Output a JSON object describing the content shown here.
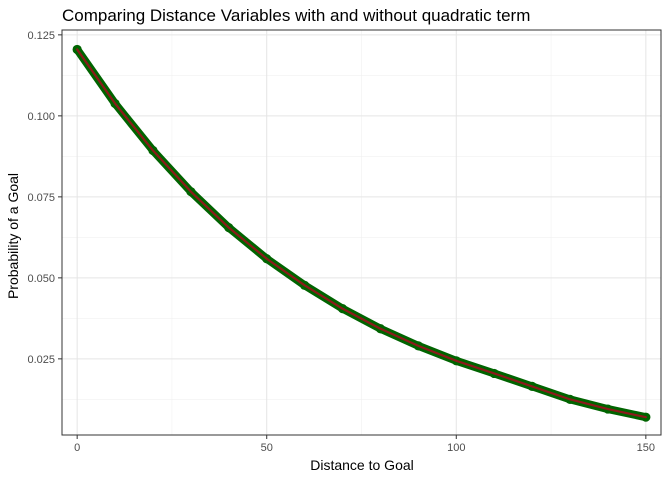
{
  "chart_data": {
    "type": "line",
    "title": "Comparing Distance Variables with and without quadratic term",
    "xlabel": "Distance to Goal",
    "ylabel": "Probability of a Goal",
    "xlim": [
      -4,
      154
    ],
    "ylim": [
      0.0015,
      0.1265
    ],
    "x_ticks": [
      0,
      50,
      100,
      150
    ],
    "x_tick_labels": [
      "0",
      "50",
      "100",
      "150"
    ],
    "y_ticks": [
      0.025,
      0.05,
      0.075,
      0.1,
      0.125
    ],
    "y_tick_labels": [
      "0.025",
      "0.050",
      "0.075",
      "0.100",
      "0.125"
    ],
    "grid": true,
    "legend": "none",
    "series": [
      {
        "color": "#006400",
        "x": [
          0,
          10,
          20,
          30,
          40,
          50,
          60,
          70,
          80,
          90,
          100,
          110,
          120,
          130,
          140,
          150
        ],
        "y": [
          0.1205,
          0.1038,
          0.0893,
          0.0766,
          0.0655,
          0.0559,
          0.0477,
          0.0405,
          0.0343,
          0.029,
          0.0244,
          0.0205,
          0.0165,
          0.0125,
          0.0095,
          0.007
        ]
      },
      {
        "color": "#8b1a1a",
        "x": [
          0,
          10,
          20,
          30,
          40,
          50,
          60,
          70,
          80,
          90,
          100,
          110,
          120,
          130,
          140,
          150
        ],
        "y": [
          0.1205,
          0.1038,
          0.0893,
          0.0766,
          0.0655,
          0.0559,
          0.0477,
          0.0405,
          0.0343,
          0.029,
          0.0244,
          0.0205,
          0.0165,
          0.0125,
          0.0095,
          0.007
        ]
      }
    ]
  }
}
